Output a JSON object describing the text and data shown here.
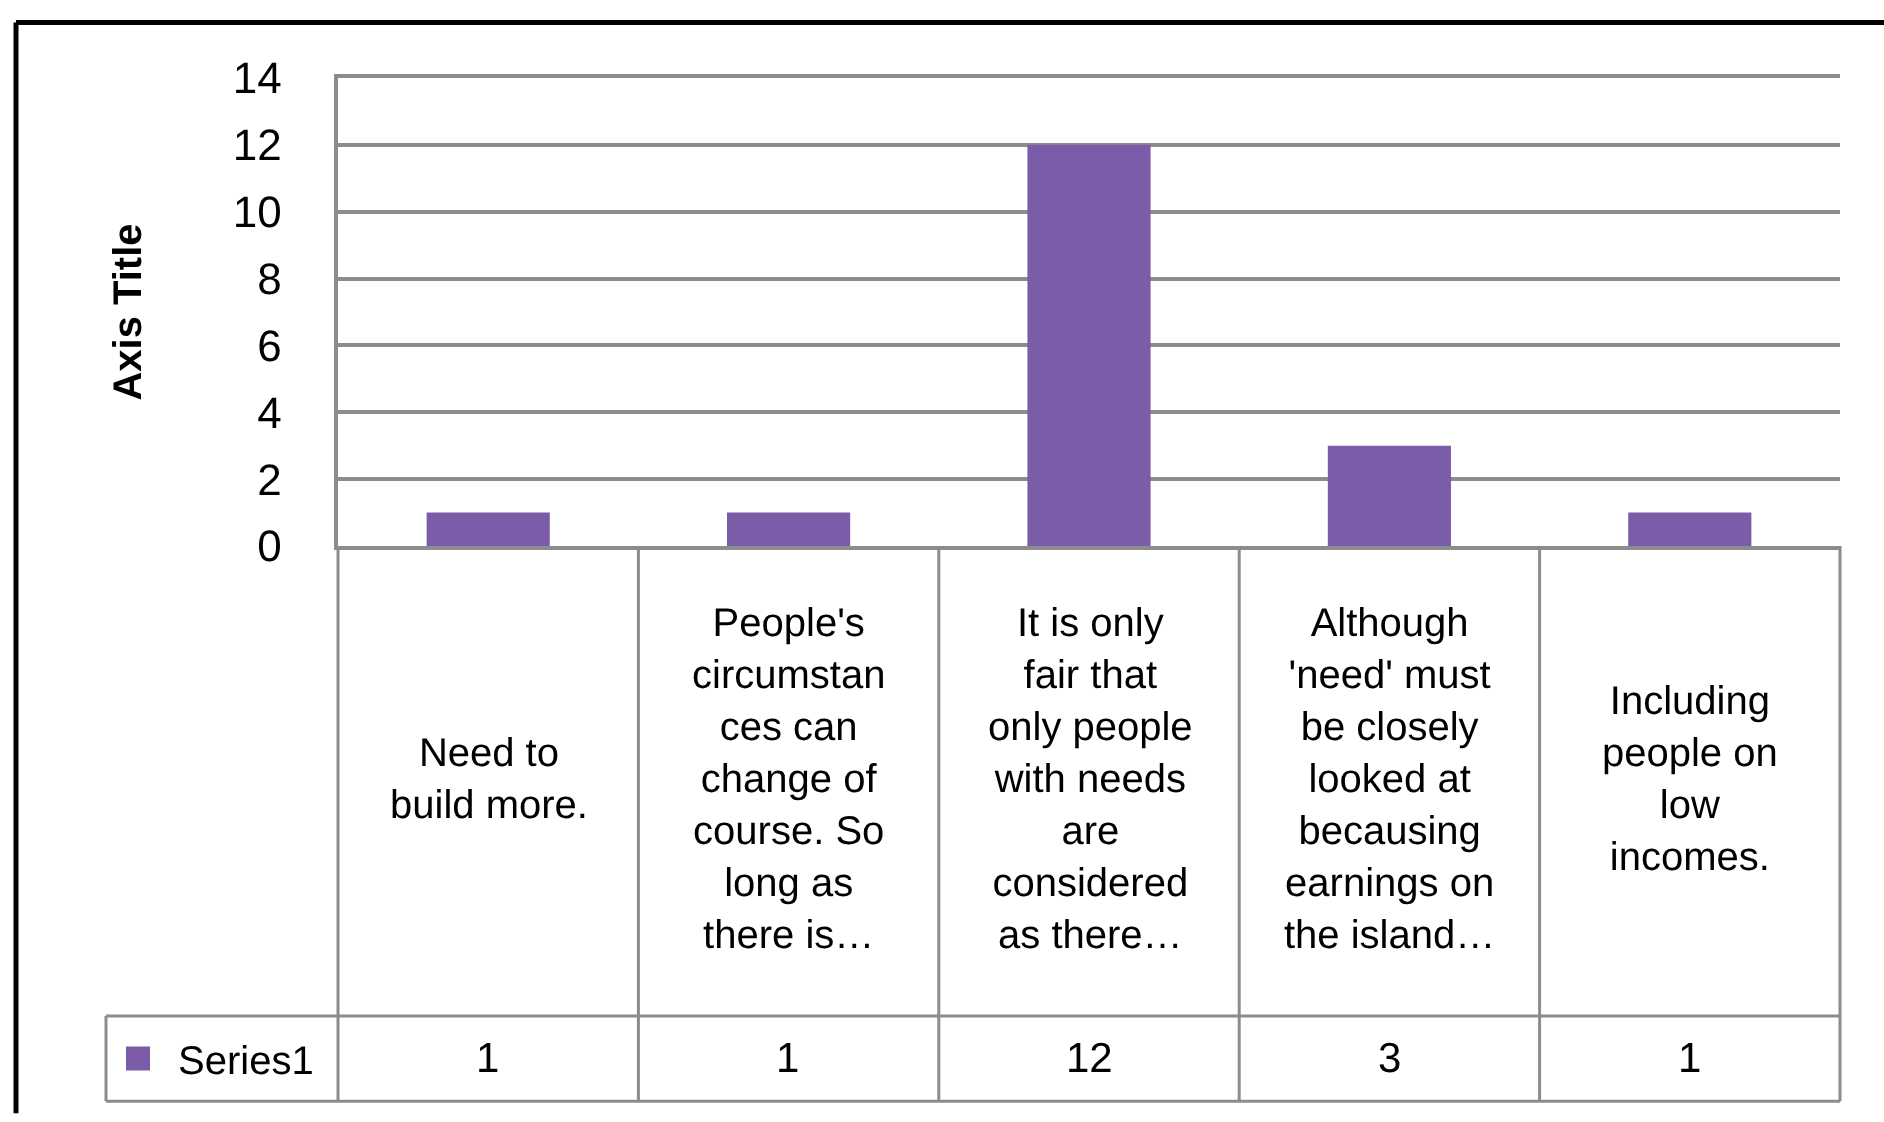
{
  "chart_data": {
    "type": "bar",
    "categories": [
      "Need to build more.",
      "People's circumstances can change of course. So long as there is…",
      "It is only fair that only people with needs are considered as there…",
      "Although 'need' must be closely looked at becausing earnings on the island…",
      "Including people on low incomes."
    ],
    "series": [
      {
        "name": "Series1",
        "color": "#7a5ca8",
        "values": [
          1,
          1,
          12,
          3,
          1
        ]
      }
    ],
    "ylabel": "Axis Title",
    "ylim": [
      0,
      14
    ],
    "yticks": [
      0,
      2,
      4,
      6,
      8,
      10,
      12,
      14
    ],
    "grid": "y",
    "legend": "bottom left",
    "data_labels": true
  }
}
